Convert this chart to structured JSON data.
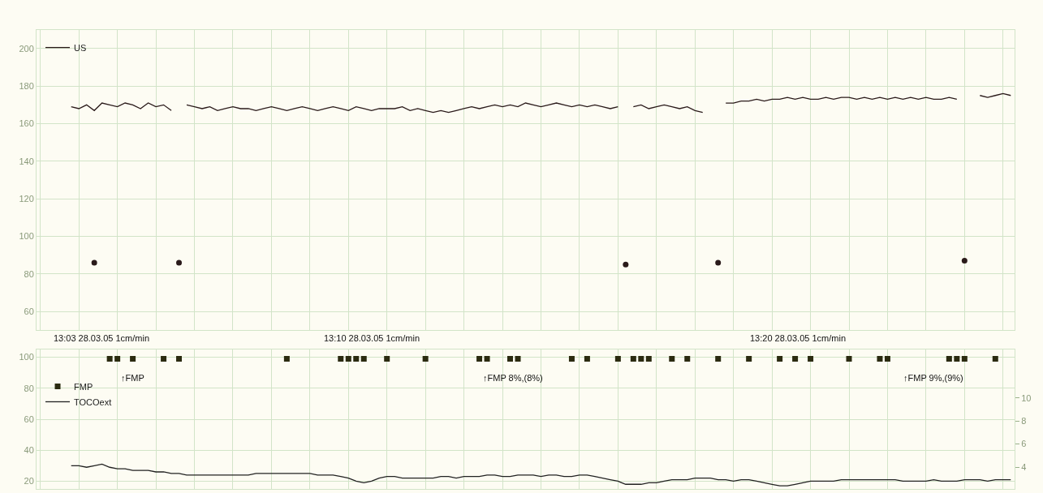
{
  "chart_data": [
    {
      "type": "line",
      "categories": [
        null,
        null,
        null,
        null,
        null,
        null,
        null,
        null,
        null,
        null,
        null,
        null,
        null,
        null,
        null,
        null,
        null,
        null,
        null,
        null,
        null,
        null,
        null,
        null,
        null,
        null,
        null,
        null,
        null,
        null,
        null,
        null,
        null,
        null,
        null,
        null,
        null,
        null,
        null,
        null,
        null,
        null,
        null,
        null,
        null,
        null,
        null,
        null,
        null,
        null,
        null,
        null,
        null,
        null,
        null,
        null,
        null,
        null,
        null,
        null,
        null,
        null,
        null,
        null,
        null,
        null,
        null,
        null,
        null,
        null,
        null,
        null,
        null,
        null,
        null,
        null,
        null,
        null,
        null,
        null,
        null,
        null,
        null,
        null,
        null,
        null,
        null,
        null,
        null,
        null,
        null,
        null,
        null,
        null,
        null,
        null,
        null,
        null,
        null,
        null,
        null,
        null,
        null,
        null,
        null,
        null,
        null,
        null,
        null,
        null,
        null,
        null,
        null,
        null,
        null,
        null,
        null,
        null,
        null,
        null,
        null,
        null,
        null,
        null,
        null,
        null,
        null
      ],
      "series": [
        {
          "name": "US",
          "color": "#2a1a1a",
          "values": [
            null,
            null,
            null,
            null,
            169,
            168,
            170,
            167,
            171,
            170,
            169,
            171,
            170,
            168,
            171,
            169,
            170,
            167,
            null,
            170,
            169,
            168,
            169,
            167,
            168,
            169,
            168,
            168,
            167,
            168,
            169,
            168,
            167,
            168,
            169,
            168,
            167,
            168,
            169,
            168,
            167,
            169,
            168,
            167,
            168,
            168,
            168,
            169,
            167,
            168,
            167,
            166,
            167,
            166,
            167,
            168,
            169,
            168,
            169,
            170,
            169,
            170,
            169,
            171,
            170,
            169,
            170,
            171,
            170,
            169,
            170,
            169,
            170,
            169,
            168,
            169,
            null,
            169,
            170,
            168,
            169,
            170,
            169,
            168,
            169,
            167,
            166,
            null,
            null,
            171,
            171,
            172,
            172,
            173,
            172,
            173,
            173,
            174,
            173,
            174,
            173,
            173,
            174,
            173,
            174,
            174,
            173,
            174,
            173,
            174,
            173,
            174,
            173,
            174,
            173,
            174,
            173,
            173,
            174,
            173,
            null,
            null,
            175,
            174,
            175,
            176,
            175
          ]
        },
        {
          "type": "scatter",
          "marker": "circle",
          "color": "#2a1a1a",
          "values": [
            null,
            null,
            null,
            null,
            null,
            null,
            null,
            86,
            null,
            null,
            null,
            null,
            null,
            null,
            null,
            null,
            null,
            null,
            86,
            null,
            null,
            null,
            null,
            null,
            null,
            null,
            null,
            null,
            null,
            null,
            null,
            null,
            null,
            null,
            null,
            null,
            null,
            null,
            null,
            null,
            null,
            null,
            null,
            null,
            null,
            null,
            null,
            null,
            null,
            null,
            null,
            null,
            null,
            null,
            null,
            null,
            null,
            null,
            null,
            null,
            null,
            null,
            null,
            null,
            null,
            null,
            null,
            null,
            null,
            null,
            null,
            null,
            null,
            null,
            null,
            null,
            85,
            null,
            null,
            null,
            null,
            null,
            null,
            null,
            null,
            null,
            null,
            null,
            86,
            null,
            null,
            null,
            null,
            null,
            null,
            null,
            null,
            null,
            null,
            null,
            null,
            null,
            null,
            null,
            null,
            null,
            null,
            null,
            null,
            null,
            null,
            null,
            null,
            null,
            null,
            null,
            null,
            null,
            null,
            null,
            87,
            null,
            null,
            null,
            null,
            null,
            null
          ]
        }
      ],
      "ylim": [
        50,
        210
      ],
      "yticks": [
        60,
        80,
        100,
        120,
        140,
        160,
        180,
        200
      ],
      "grid": true,
      "legend": "top left",
      "tick_labels": "y",
      "marker": "none"
    },
    {
      "type": "line",
      "categories": [
        null,
        null,
        null,
        null,
        null,
        null,
        null,
        null,
        null,
        null,
        null,
        null,
        null,
        null,
        null,
        null,
        null,
        null,
        null,
        null,
        null,
        null,
        null,
        null,
        null,
        null,
        null,
        null,
        null,
        null,
        null,
        null,
        null,
        null,
        null,
        null,
        null,
        null,
        null,
        null,
        null,
        null,
        null,
        null,
        null,
        null,
        null,
        null,
        null,
        null,
        null,
        null,
        null,
        null,
        null,
        null,
        null,
        null,
        null,
        null,
        null,
        null,
        null,
        null,
        null,
        null,
        null,
        null,
        null,
        null,
        null,
        null,
        null,
        null,
        null,
        null,
        null,
        null,
        null,
        null,
        null,
        null,
        null,
        null,
        null,
        null,
        null,
        null,
        null,
        null,
        null,
        null,
        null,
        null,
        null,
        null,
        null,
        null,
        null,
        null,
        null,
        null,
        null,
        null,
        null,
        null,
        null,
        null,
        null,
        null,
        null,
        null,
        null,
        null,
        null,
        null,
        null,
        null,
        null,
        null,
        null,
        null,
        null,
        null,
        null,
        null,
        null
      ],
      "series": [
        {
          "name": "FMP",
          "type": "scatter",
          "marker": "square",
          "color": "#2b2b10",
          "values": [
            null,
            null,
            null,
            null,
            null,
            null,
            null,
            null,
            null,
            99,
            99,
            null,
            99,
            null,
            null,
            null,
            99,
            null,
            99,
            null,
            null,
            null,
            null,
            null,
            null,
            null,
            null,
            null,
            null,
            null,
            null,
            null,
            99,
            null,
            null,
            null,
            null,
            null,
            null,
            99,
            99,
            99,
            99,
            null,
            null,
            99,
            null,
            null,
            null,
            null,
            99,
            null,
            null,
            null,
            null,
            null,
            null,
            99,
            99,
            null,
            null,
            99,
            99,
            null,
            null,
            null,
            null,
            null,
            null,
            99,
            null,
            99,
            null,
            null,
            null,
            99,
            null,
            99,
            99,
            99,
            null,
            null,
            99,
            null,
            99,
            null,
            null,
            null,
            99,
            null,
            null,
            null,
            99,
            null,
            null,
            null,
            99,
            null,
            99,
            null,
            99,
            null,
            null,
            null,
            null,
            99,
            null,
            null,
            null,
            99,
            99,
            null,
            null,
            null,
            null,
            null,
            null,
            null,
            99,
            99,
            99,
            null,
            null,
            null,
            99,
            null,
            null
          ]
        },
        {
          "name": "TOCOext",
          "color": "#222222",
          "values": [
            null,
            null,
            null,
            null,
            30,
            30,
            29,
            30,
            31,
            29,
            28,
            28,
            27,
            27,
            27,
            26,
            26,
            25,
            25,
            24,
            24,
            24,
            24,
            24,
            24,
            24,
            24,
            24,
            25,
            25,
            25,
            25,
            25,
            25,
            25,
            25,
            24,
            24,
            24,
            23,
            22,
            20,
            19,
            20,
            22,
            23,
            23,
            22,
            22,
            22,
            22,
            22,
            23,
            23,
            22,
            23,
            23,
            23,
            24,
            24,
            23,
            23,
            24,
            24,
            24,
            23,
            24,
            24,
            23,
            23,
            24,
            24,
            23,
            22,
            21,
            20,
            18,
            18,
            18,
            19,
            19,
            20,
            21,
            21,
            21,
            22,
            22,
            22,
            21,
            21,
            20,
            21,
            21,
            20,
            19,
            18,
            17,
            17,
            18,
            19,
            20,
            20,
            20,
            20,
            21,
            21,
            21,
            21,
            21,
            21,
            21,
            21,
            20,
            20,
            20,
            20,
            21,
            20,
            20,
            20,
            21,
            21,
            21,
            20,
            21,
            21,
            21
          ]
        }
      ],
      "ylim": [
        15,
        105
      ],
      "yticks": [
        20,
        40,
        60,
        80,
        100
      ],
      "y2lim": [
        2.1,
        14.2
      ],
      "y2ticks": [
        4,
        6,
        8,
        10
      ],
      "grid": true,
      "legend": "top left",
      "tick_labels": "y",
      "marker": "none",
      "annotations": [
        "13:03 28.03.05 1cm/min",
        "13:10 28.03.05 1cm/min",
        "13:20 28.03.05 1cm/min",
        "↑FMP",
        "↑FMP 8%,(8%)",
        "↑FMP 9%,(9%)"
      ]
    }
  ]
}
